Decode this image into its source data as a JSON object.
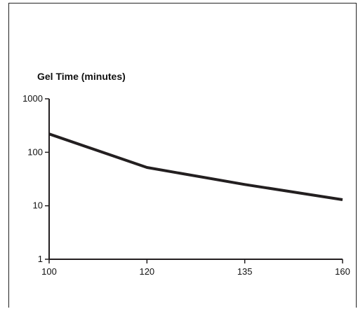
{
  "chart_data": {
    "type": "line",
    "title": "",
    "ylabel": "Gel Time (minutes)",
    "xlabel": "",
    "x": [
      100,
      120,
      135,
      160
    ],
    "x_tick_labels": [
      "100",
      "120",
      "135",
      "160"
    ],
    "series": [
      {
        "values": [
          220,
          52,
          25,
          13
        ]
      }
    ],
    "y_scale": "log",
    "ylim": [
      1,
      1000
    ],
    "y_tick_labels": [
      "1",
      "10",
      "100",
      "1000"
    ],
    "y_ticks": [
      1,
      10,
      100,
      1000
    ],
    "grid": false,
    "line_color": "#231f20"
  }
}
